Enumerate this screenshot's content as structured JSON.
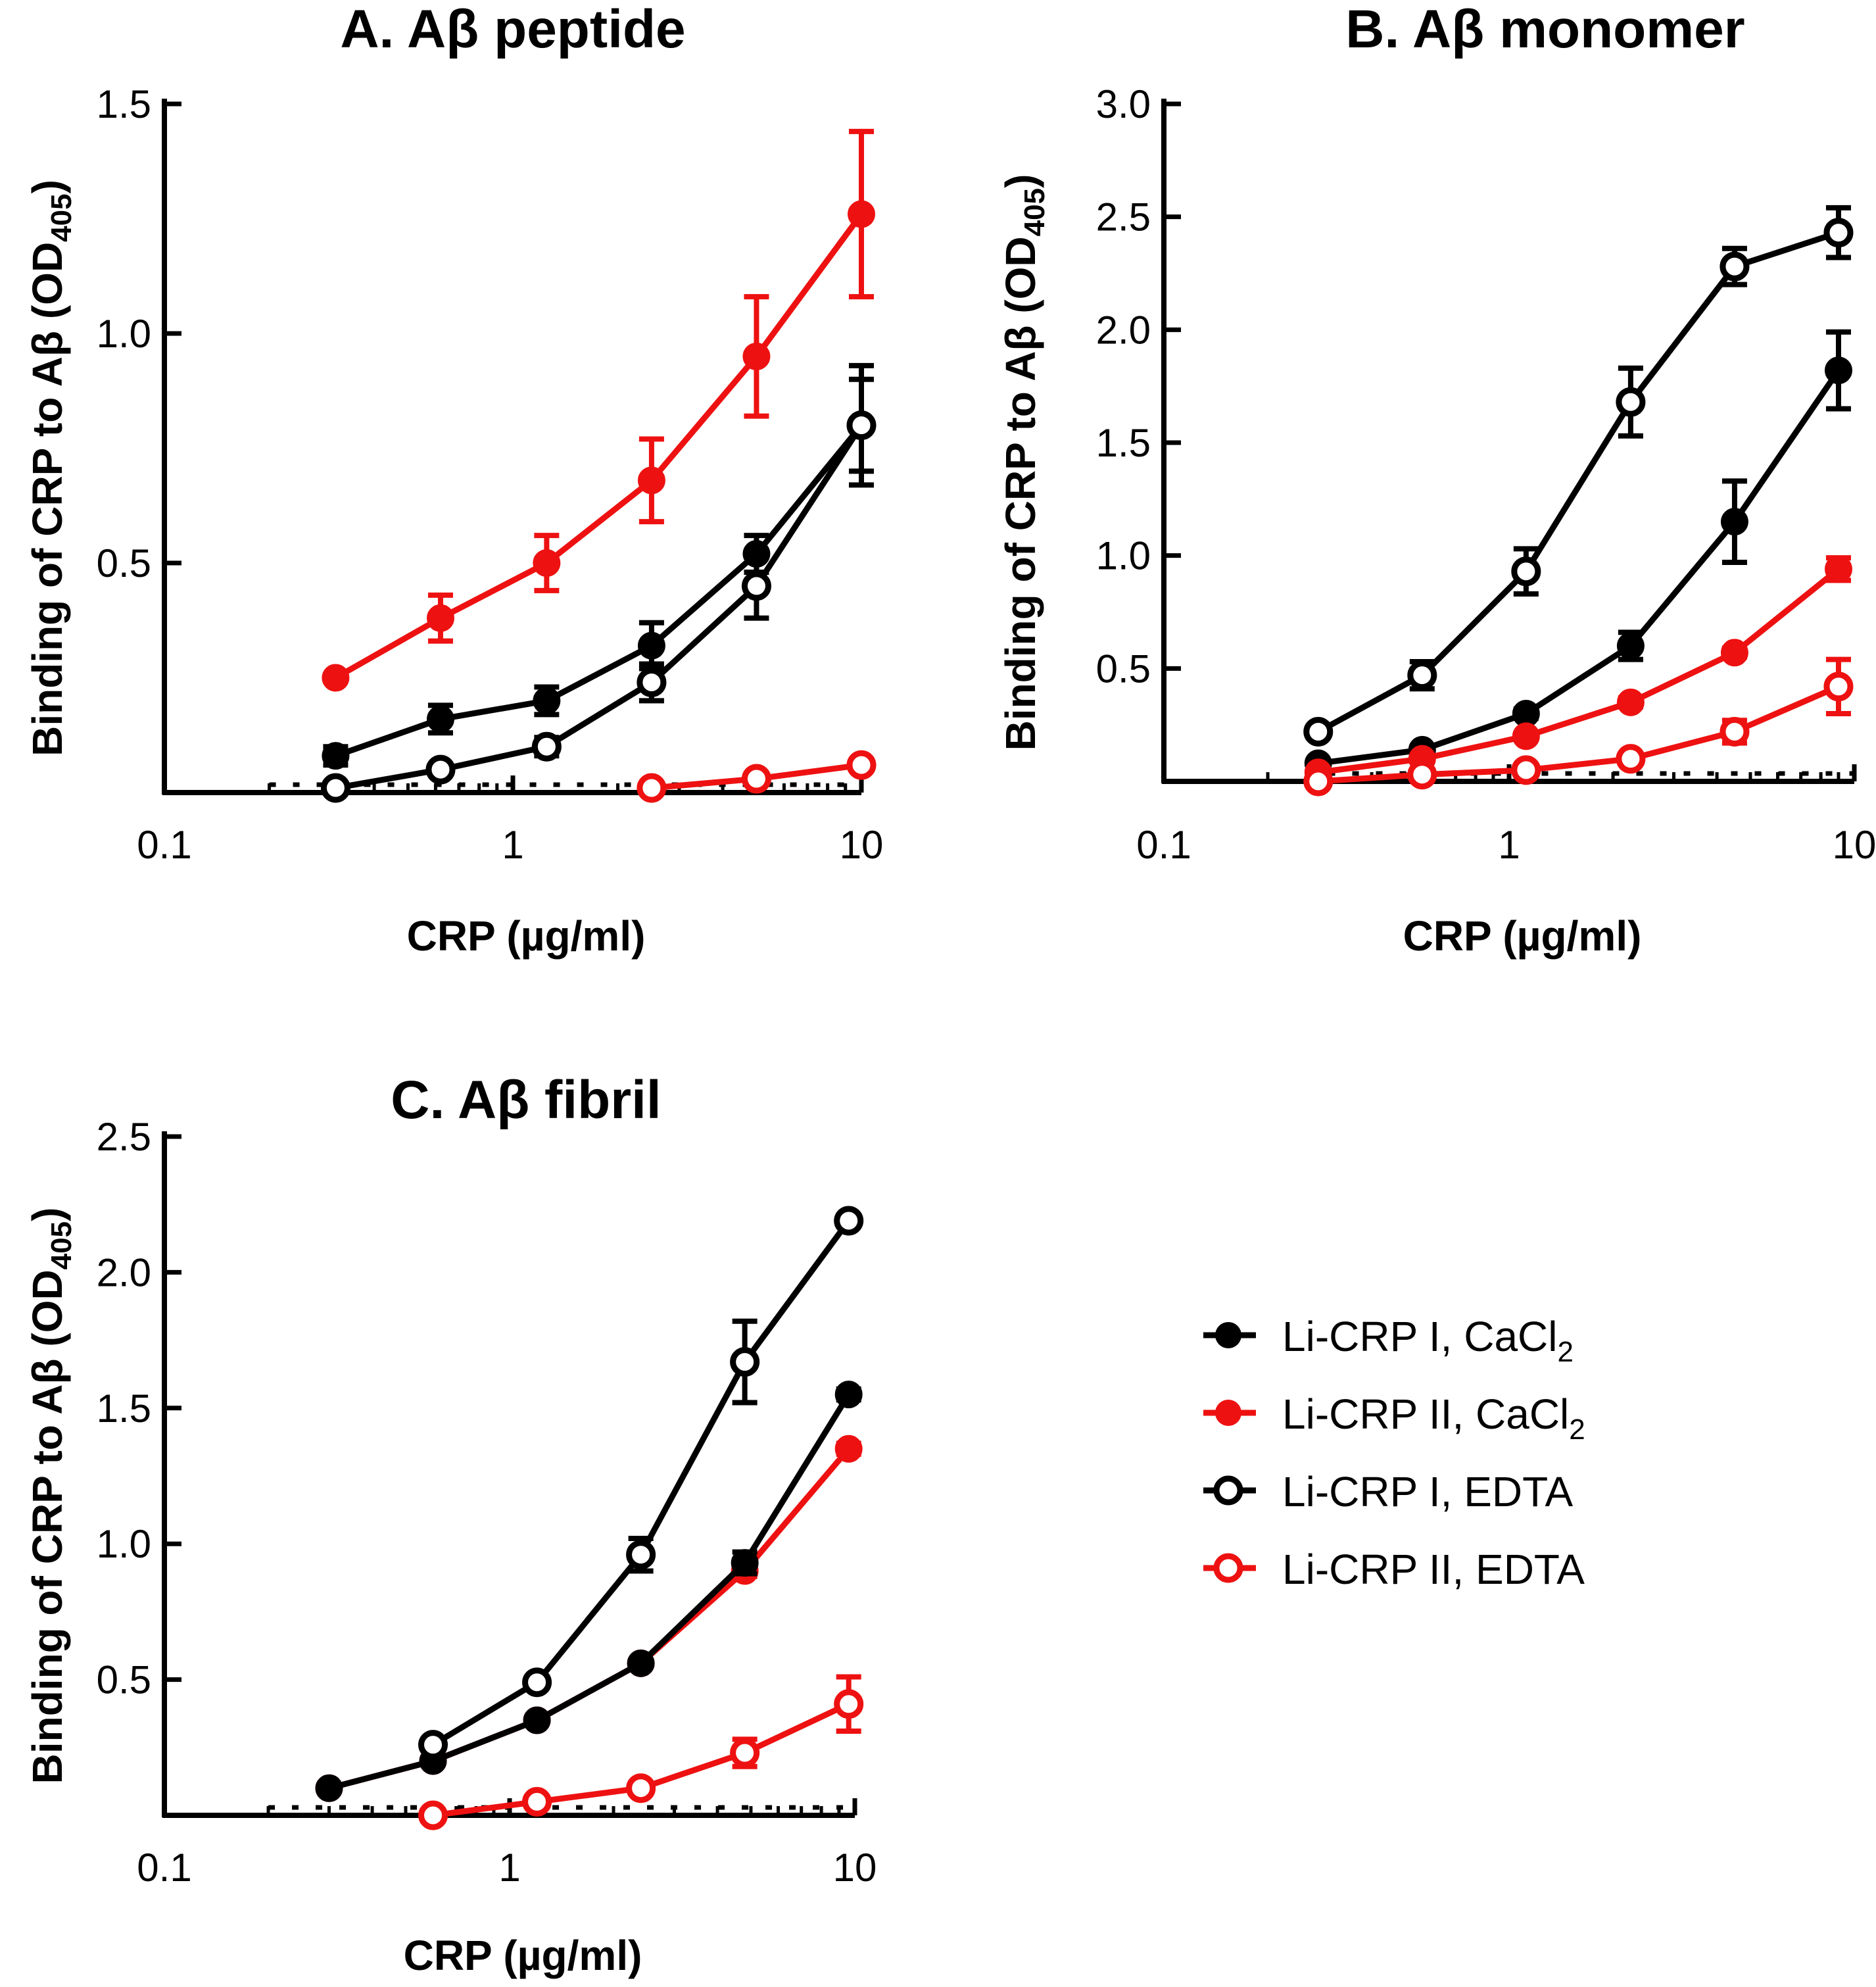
{
  "colors": {
    "black": "#000000",
    "red": "#ee1111"
  },
  "legend": [
    {
      "label": "Li-CRP I, CaCl",
      "sub": "2",
      "color": "#000000",
      "filled": true
    },
    {
      "label": "Li-CRP II, CaCl",
      "sub": "2",
      "color": "#ee1111",
      "filled": true
    },
    {
      "label": "Li-CRP I, EDTA",
      "sub": "",
      "color": "#000000",
      "filled": false
    },
    {
      "label": "Li-CRP II, EDTA",
      "sub": "",
      "color": "#ee1111",
      "filled": false
    }
  ],
  "chart_data": [
    {
      "type": "line",
      "title": "A. Aβ peptide",
      "xlabel": "CRP (µg/ml)",
      "ylabel": "Binding of CRP to Aβ (OD",
      "ylabel_sub": "405",
      "ylabel_end": ")",
      "xscale": "log",
      "xlim": [
        0.1,
        10
      ],
      "ylim": [
        0,
        1.5
      ],
      "xticks": [
        0.1,
        1,
        10
      ],
      "xtick_labels": [
        "0.1",
        "1",
        "10"
      ],
      "yticks": [
        0.5,
        1.0,
        1.5
      ],
      "ytick_labels": [
        "0.5",
        "1.0",
        "1.5"
      ],
      "baseline_dash_from": 0.2,
      "series": [
        {
          "name": "Li-CRP I, CaCl2",
          "color": "#000000",
          "filled": true,
          "x": [
            0.31,
            0.62,
            1.25,
            2.5,
            5,
            10
          ],
          "y": [
            0.08,
            0.16,
            0.2,
            0.32,
            0.52,
            0.8
          ],
          "err": [
            0.02,
            0.03,
            0.03,
            0.05,
            0.04,
            0.13
          ]
        },
        {
          "name": "Li-CRP II, CaCl2",
          "color": "#ee1111",
          "filled": true,
          "x": [
            0.31,
            0.62,
            1.25,
            2.5,
            5,
            10
          ],
          "y": [
            0.25,
            0.38,
            0.5,
            0.68,
            0.95,
            1.26
          ],
          "err": [
            0.01,
            0.05,
            0.06,
            0.09,
            0.13,
            0.18
          ]
        },
        {
          "name": "Li-CRP I, EDTA",
          "color": "#000000",
          "filled": false,
          "x": [
            0.31,
            0.62,
            1.25,
            2.5,
            5,
            10
          ],
          "y": [
            0.01,
            0.05,
            0.1,
            0.24,
            0.45,
            0.8
          ],
          "err": [
            0.01,
            0.01,
            0.02,
            0.04,
            0.07,
            0.1
          ]
        },
        {
          "name": "Li-CRP II, EDTA",
          "color": "#ee1111",
          "filled": false,
          "x": [
            2.5,
            5,
            10
          ],
          "y": [
            0.01,
            0.03,
            0.06
          ],
          "err": [
            0.01,
            0.01,
            0.01
          ]
        }
      ]
    },
    {
      "type": "line",
      "title": "B. Aβ monomer",
      "xlabel": "CRP (µg/ml)",
      "ylabel": "Binding of CRP to Aβ (OD",
      "ylabel_sub": "405",
      "ylabel_end": ")",
      "xscale": "log",
      "xlim": [
        0.1,
        10
      ],
      "ylim": [
        0,
        3.0
      ],
      "xticks": [
        0.1,
        1,
        10
      ],
      "xtick_labels": [
        "0.1",
        "1",
        "10"
      ],
      "yticks": [
        0.5,
        1.0,
        1.5,
        2.0,
        2.5,
        3.0
      ],
      "ytick_labels": [
        "0.5",
        "1.0",
        "1.5",
        "2.0",
        "2.5",
        "3.0"
      ],
      "baseline_dash_from": 0.3,
      "series": [
        {
          "name": "Li-CRP I, CaCl2",
          "color": "#000000",
          "filled": true,
          "x": [
            0.28,
            0.56,
            1.12,
            2.25,
            4.5,
            9
          ],
          "y": [
            0.08,
            0.14,
            0.3,
            0.6,
            1.15,
            1.82
          ],
          "err": [
            0.01,
            0.01,
            0.02,
            0.06,
            0.18,
            0.17
          ]
        },
        {
          "name": "Li-CRP II, CaCl2",
          "color": "#ee1111",
          "filled": true,
          "x": [
            0.28,
            0.56,
            1.12,
            2.25,
            4.5,
            9
          ],
          "y": [
            0.04,
            0.1,
            0.2,
            0.35,
            0.57,
            0.94
          ],
          "err": [
            0.01,
            0.01,
            0.01,
            0.02,
            0.02,
            0.05
          ]
        },
        {
          "name": "Li-CRP I, EDTA",
          "color": "#000000",
          "filled": false,
          "x": [
            0.28,
            0.56,
            1.12,
            2.25,
            4.5,
            9
          ],
          "y": [
            0.22,
            0.47,
            0.93,
            1.68,
            2.28,
            2.43
          ],
          "err": [
            0.01,
            0.06,
            0.1,
            0.15,
            0.08,
            0.11
          ]
        },
        {
          "name": "Li-CRP II, EDTA",
          "color": "#ee1111",
          "filled": false,
          "x": [
            0.28,
            0.56,
            1.12,
            2.25,
            4.5,
            9
          ],
          "y": [
            0.0,
            0.03,
            0.05,
            0.1,
            0.22,
            0.42
          ],
          "err": [
            0.01,
            0.01,
            0.01,
            0.02,
            0.05,
            0.12
          ]
        }
      ]
    },
    {
      "type": "line",
      "title": "C. Aβ fibril",
      "xlabel": "CRP (µg/ml)",
      "ylabel": "Binding of CRP to Aβ (OD",
      "ylabel_sub": "405",
      "ylabel_end": ")",
      "xscale": "log",
      "xlim": [
        0.1,
        10
      ],
      "ylim": [
        0,
        2.5
      ],
      "xticks": [
        0.1,
        1,
        10
      ],
      "xtick_labels": [
        "0.1",
        "1",
        "10"
      ],
      "yticks": [
        0.5,
        1.0,
        1.5,
        2.0,
        2.5
      ],
      "ytick_labels": [
        "0.5",
        "1.0",
        "1.5",
        "2.0",
        "2.5"
      ],
      "baseline_dash_from": 0.2,
      "series": [
        {
          "name": "Li-CRP II, CaCl2",
          "color": "#ee1111",
          "filled": true,
          "x": [
            0.3,
            0.6,
            1.2,
            2.4,
            4.8,
            9.6
          ],
          "y": [
            0.1,
            0.2,
            0.35,
            0.56,
            0.9,
            1.35
          ],
          "err": [
            0.01,
            0.01,
            0.01,
            0.01,
            0.02,
            0.02
          ]
        },
        {
          "name": "Li-CRP I, CaCl2",
          "color": "#000000",
          "filled": true,
          "x": [
            0.3,
            0.6,
            1.2,
            2.4,
            4.8,
            9.6
          ],
          "y": [
            0.1,
            0.2,
            0.35,
            0.56,
            0.93,
            1.55
          ],
          "err": [
            0.01,
            0.01,
            0.01,
            0.01,
            0.04,
            0.02
          ]
        },
        {
          "name": "Li-CRP I, EDTA",
          "color": "#000000",
          "filled": false,
          "x": [
            0.6,
            1.2,
            2.4,
            4.8,
            9.6
          ],
          "y": [
            0.26,
            0.49,
            0.96,
            1.67,
            2.19
          ],
          "err": [
            0.01,
            0.02,
            0.06,
            0.15,
            0.02
          ]
        },
        {
          "name": "Li-CRP II, EDTA",
          "color": "#ee1111",
          "filled": false,
          "x": [
            0.6,
            1.2,
            2.4,
            4.8,
            9.6
          ],
          "y": [
            0.0,
            0.05,
            0.1,
            0.23,
            0.41
          ],
          "err": [
            0.01,
            0.01,
            0.02,
            0.05,
            0.1
          ]
        }
      ]
    }
  ]
}
